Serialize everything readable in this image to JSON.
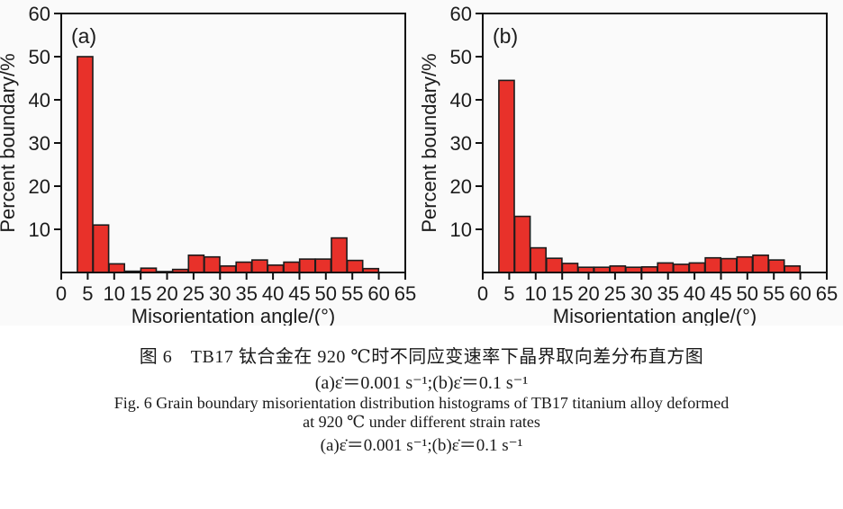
{
  "figure": {
    "caption_zh": "图 6　TB17 钛合金在 920 ℃时不同应变速率下晶界取向差分布直方图",
    "caption_conditions_zh": "(a)ε̇＝0.001 s⁻¹;(b)ε̇＝0.1 s⁻¹",
    "caption_en_line1": "Fig. 6  Grain boundary misorientation distribution histograms of TB17 titanium alloy deformed",
    "caption_en_line2": "at 920 ℃ under different strain rates",
    "caption_conditions_en": "(a)ε̇＝0.001 s⁻¹;(b)ε̇＝0.1 s⁻¹"
  },
  "chart_data": [
    {
      "type": "bar",
      "panel_label": "(a)",
      "title": "",
      "xlabel": "Misorientation angle/(°)",
      "ylabel": "Percent boundary/%",
      "xlim": [
        0,
        65
      ],
      "ylim": [
        0,
        60
      ],
      "x_ticks": [
        0,
        5,
        10,
        15,
        20,
        25,
        30,
        35,
        40,
        45,
        50,
        55,
        60,
        65
      ],
      "y_ticks": [
        10,
        20,
        30,
        40,
        50,
        60
      ],
      "grid": false,
      "legend": "none",
      "bin_width_deg": 3,
      "bin_centers": [
        4.5,
        7.5,
        10.5,
        13.5,
        16.5,
        19.5,
        22.5,
        25.5,
        28.5,
        31.5,
        34.5,
        37.5,
        40.5,
        43.5,
        46.5,
        49.5,
        52.5,
        55.5,
        58.5
      ],
      "values": [
        50,
        11,
        2,
        0.3,
        1,
        0.2,
        0.7,
        4,
        3.6,
        1.5,
        2.4,
        2.9,
        1.7,
        2.4,
        3.1,
        3.1,
        8,
        2.8,
        0.9
      ],
      "bar_color": "#e8312a",
      "bar_edge_color": "#1c1c1c",
      "axis_color": "#111111"
    },
    {
      "type": "bar",
      "panel_label": "(b)",
      "title": "",
      "xlabel": "Misorientation angle/(°)",
      "ylabel": "Percent boundary/%",
      "xlim": [
        0,
        65
      ],
      "ylim": [
        0,
        60
      ],
      "x_ticks": [
        0,
        5,
        10,
        15,
        20,
        25,
        30,
        35,
        40,
        45,
        50,
        55,
        60,
        65
      ],
      "y_ticks": [
        10,
        20,
        30,
        40,
        50,
        60
      ],
      "grid": false,
      "legend": "none",
      "bin_width_deg": 3,
      "bin_centers": [
        4.5,
        7.5,
        10.5,
        13.5,
        16.5,
        19.5,
        22.5,
        25.5,
        28.5,
        31.5,
        34.5,
        37.5,
        40.5,
        43.5,
        46.5,
        49.5,
        52.5,
        55.5,
        58.5
      ],
      "values": [
        44.5,
        13,
        5.7,
        3.3,
        2.1,
        1.2,
        1.2,
        1.5,
        1.2,
        1.3,
        2.2,
        1.9,
        2.2,
        3.4,
        3.2,
        3.6,
        4.0,
        2.9,
        1.5
      ],
      "bar_color": "#e8312a",
      "bar_edge_color": "#1c1c1c",
      "axis_color": "#111111"
    }
  ]
}
